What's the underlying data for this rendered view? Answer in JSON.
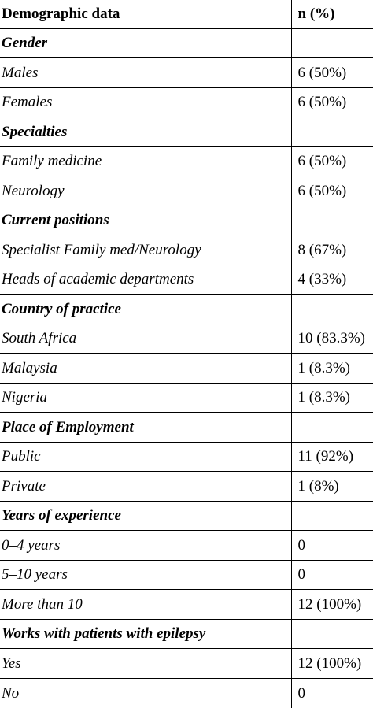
{
  "header": {
    "col1": "Demographic data",
    "col2": "n (%)"
  },
  "rows": [
    {
      "type": "section",
      "label": "Gender",
      "value": ""
    },
    {
      "type": "item",
      "label": "Males",
      "value": "6 (50%)"
    },
    {
      "type": "item",
      "label": "Females",
      "value": "6 (50%)"
    },
    {
      "type": "section",
      "label": "Specialties",
      "value": ""
    },
    {
      "type": "item",
      "label": "Family medicine",
      "value": "6 (50%)"
    },
    {
      "type": "item",
      "label": "Neurology",
      "value": "6 (50%)"
    },
    {
      "type": "section",
      "label": "Current positions",
      "value": ""
    },
    {
      "type": "item",
      "label": "Specialist Family med/Neurology",
      "value": "8 (67%)"
    },
    {
      "type": "item",
      "label": "Heads of academic departments",
      "value": "4 (33%)"
    },
    {
      "type": "section",
      "label": "Country of practice",
      "value": ""
    },
    {
      "type": "item",
      "label": "South Africa",
      "value": "10 (83.3%)"
    },
    {
      "type": "item",
      "label": "Malaysia",
      "value": "1 (8.3%)"
    },
    {
      "type": "item",
      "label": "Nigeria",
      "value": "1 (8.3%)"
    },
    {
      "type": "section",
      "label": "Place of Employment",
      "value": ""
    },
    {
      "type": "item",
      "label": "Public",
      "value": "11 (92%)"
    },
    {
      "type": "item",
      "label": "Private",
      "value": "1 (8%)"
    },
    {
      "type": "section",
      "label": "Years of experience",
      "value": ""
    },
    {
      "type": "item",
      "label": "0–4 years",
      "value": "0"
    },
    {
      "type": "item",
      "label": "5–10 years",
      "value": "0"
    },
    {
      "type": "item",
      "label": "More than 10",
      "value": "12 (100%)"
    },
    {
      "type": "section",
      "label": "Works with patients with epilepsy",
      "value": ""
    },
    {
      "type": "item",
      "label": "Yes",
      "value": "12 (100%)"
    },
    {
      "type": "item",
      "label": "No",
      "value": "0"
    }
  ]
}
